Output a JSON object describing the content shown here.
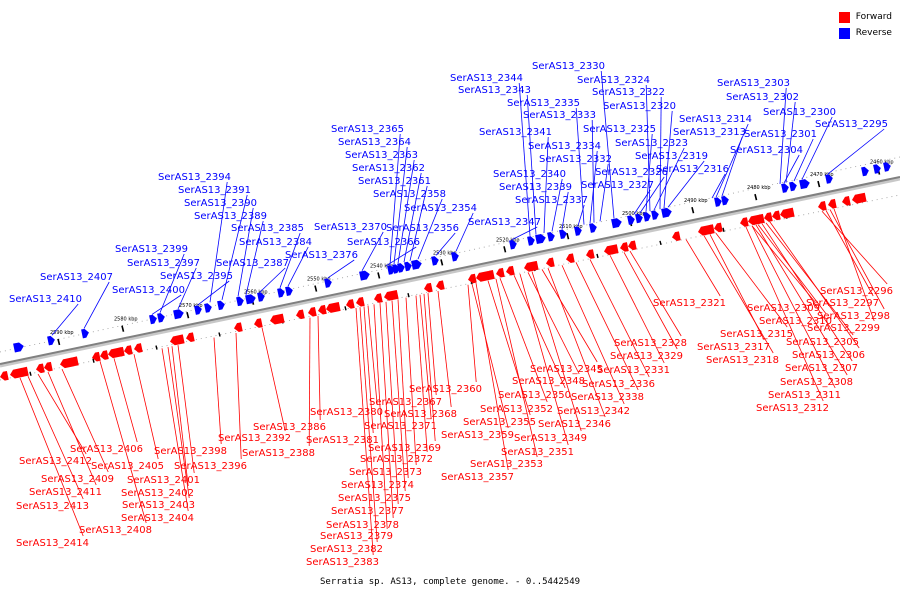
{
  "caption": "Serratia sp. AS13, complete genome. - 0..5442549",
  "legend": {
    "placement": "top-right",
    "items": [
      {
        "label": "Forward",
        "color": "#ff0000"
      },
      {
        "label": "Reverse",
        "color": "#0000ff"
      }
    ]
  },
  "colors": {
    "forward": "#ff0000",
    "reverse": "#0000ff",
    "backbone": "#808080"
  },
  "ticks": [
    "2460 kbp",
    "2470 kbp",
    "2480 kbp",
    "2490 kbp",
    "2500 kbp",
    "2510 kbp",
    "2520 kbp",
    "2530 kbp",
    "2540 kbp",
    "2550 kbp",
    "2560 kbp",
    "2570 kbp",
    "2580 kbp",
    "2590 kbp"
  ],
  "reverse_genes": [
    "SerAS13_2295",
    "SerAS13_2300",
    "SerAS13_2301",
    "SerAS13_2302",
    "SerAS13_2303",
    "SerAS13_2304",
    "SerAS13_2313",
    "SerAS13_2314",
    "SerAS13_2316",
    "SerAS13_2319",
    "SerAS13_2320",
    "SerAS13_2322",
    "SerAS13_2323",
    "SerAS13_2324",
    "SerAS13_2325",
    "SerAS13_2326",
    "SerAS13_2327",
    "SerAS13_2330",
    "SerAS13_2332",
    "SerAS13_2333",
    "SerAS13_2334",
    "SerAS13_2335",
    "SerAS13_2337",
    "SerAS13_2339",
    "SerAS13_2340",
    "SerAS13_2341",
    "SerAS13_2343",
    "SerAS13_2344",
    "SerAS13_2347",
    "SerAS13_2354",
    "SerAS13_2356",
    "SerAS13_2358",
    "SerAS13_2361",
    "SerAS13_2362",
    "SerAS13_2363",
    "SerAS13_2364",
    "SerAS13_2365",
    "SerAS13_2366",
    "SerAS13_2370",
    "SerAS13_2376",
    "SerAS13_2384",
    "SerAS13_2385",
    "SerAS13_2387",
    "SerAS13_2389",
    "SerAS13_2390",
    "SerAS13_2391",
    "SerAS13_2394",
    "SerAS13_2395",
    "SerAS13_2397",
    "SerAS13_2399",
    "SerAS13_2400",
    "SerAS13_2407",
    "SerAS13_2410"
  ],
  "forward_genes": [
    "SerAS13_2296",
    "SerAS13_2297",
    "SerAS13_2298",
    "SerAS13_2299",
    "SerAS13_2305",
    "SerAS13_2306",
    "SerAS13_2307",
    "SerAS13_2308",
    "SerAS13_2309",
    "SerAS13_2310",
    "SerAS13_2311",
    "SerAS13_2312",
    "SerAS13_2315",
    "SerAS13_2317",
    "SerAS13_2318",
    "SerAS13_2321",
    "SerAS13_2328",
    "SerAS13_2329",
    "SerAS13_2331",
    "SerAS13_2336",
    "SerAS13_2338",
    "SerAS13_2342",
    "SerAS13_2345",
    "SerAS13_2346",
    "SerAS13_2348",
    "SerAS13_2349",
    "SerAS13_2350",
    "SerAS13_2351",
    "SerAS13_2352",
    "SerAS13_2353",
    "SerAS13_2355",
    "SerAS13_2357",
    "SerAS13_2359",
    "SerAS13_2360",
    "SerAS13_2367",
    "SerAS13_2368",
    "SerAS13_2369",
    "SerAS13_2371",
    "SerAS13_2372",
    "SerAS13_2373",
    "SerAS13_2374",
    "SerAS13_2375",
    "SerAS13_2377",
    "SerAS13_2378",
    "SerAS13_2379",
    "SerAS13_2380",
    "SerAS13_2381",
    "SerAS13_2382",
    "SerAS13_2383",
    "SerAS13_2386",
    "SerAS13_2388",
    "SerAS13_2392",
    "SerAS13_2396",
    "SerAS13_2398",
    "SerAS13_2401",
    "SerAS13_2402",
    "SerAS13_2403",
    "SerAS13_2404",
    "SerAS13_2405",
    "SerAS13_2406",
    "SerAS13_2408",
    "SerAS13_2409",
    "SerAS13_2411",
    "SerAS13_2412",
    "SerAS13_2413",
    "SerAS13_2414"
  ]
}
